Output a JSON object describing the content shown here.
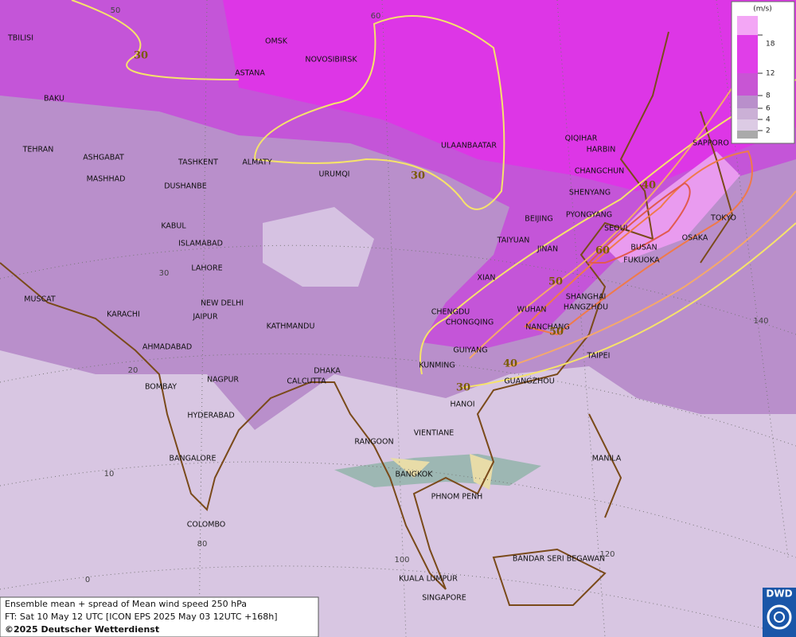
{
  "cities": [
    "TBILISI",
    "OMSK",
    "NOVOSIBIRSK",
    "ASTANA",
    "BAKU",
    "TEHRAN",
    "ASHGABAT",
    "TASHKENT",
    "ALMATY",
    "URUMQI",
    "MASHHAD",
    "DUSHANBE",
    "ULAANBAATAR",
    "QIQIHAR",
    "HARBIN",
    "CHANGCHUN",
    "SHENYANG",
    "SAPPORO",
    "BEIJING",
    "PYONGYANG",
    "SEOUL",
    "TOKYO",
    "TAIYUAN",
    "JINAN",
    "BUSAN",
    "OSAKA",
    "FUKUOKA",
    "KABUL",
    "ISLAMABAD",
    "LAHORE",
    "XIAN",
    "SHANGHAI",
    "NEW DELHI",
    "CHENGDU",
    "WUHAN",
    "HANGZHOU",
    "MUSCAT",
    "KARACHI",
    "JAIPUR",
    "KATHMANDU",
    "CHONGQING",
    "NANCHANG",
    "AHMADABAD",
    "GUIYANG",
    "TAIPEI",
    "DHAKA",
    "KUNMING",
    "NAGPUR",
    "CALCUTTA",
    "BOMBAY",
    "GUANGZHOU",
    "HANOI",
    "HYDERABAD",
    "VIENTIANE",
    "RANGOON",
    "BANGALORE",
    "MANILA",
    "BANGKOK",
    "PHNOM PENH",
    "COLOMBO",
    "BANDAR SERI BEGAWAN",
    "KUALA LUMPUR",
    "SINGAPORE"
  ],
  "graticule_labels": [
    50,
    60,
    30,
    20,
    10,
    0,
    80,
    100,
    120,
    140
  ],
  "contour_labels": [
    30,
    30,
    40,
    60,
    50,
    50,
    40,
    30
  ],
  "legend": {
    "unit": "(m/s)",
    "ticks": [
      18,
      12,
      8,
      6,
      4,
      2
    ]
  },
  "footer": {
    "line1": "Ensemble mean + spread of Mean wind speed 250 hPa",
    "line2": "FT: Sat 10 May 12 UTC [ICON EPS 2025 May 03 12UTC +168h]",
    "line3": "©2025 Deutscher Wetterdienst"
  },
  "logo": "DWD"
}
